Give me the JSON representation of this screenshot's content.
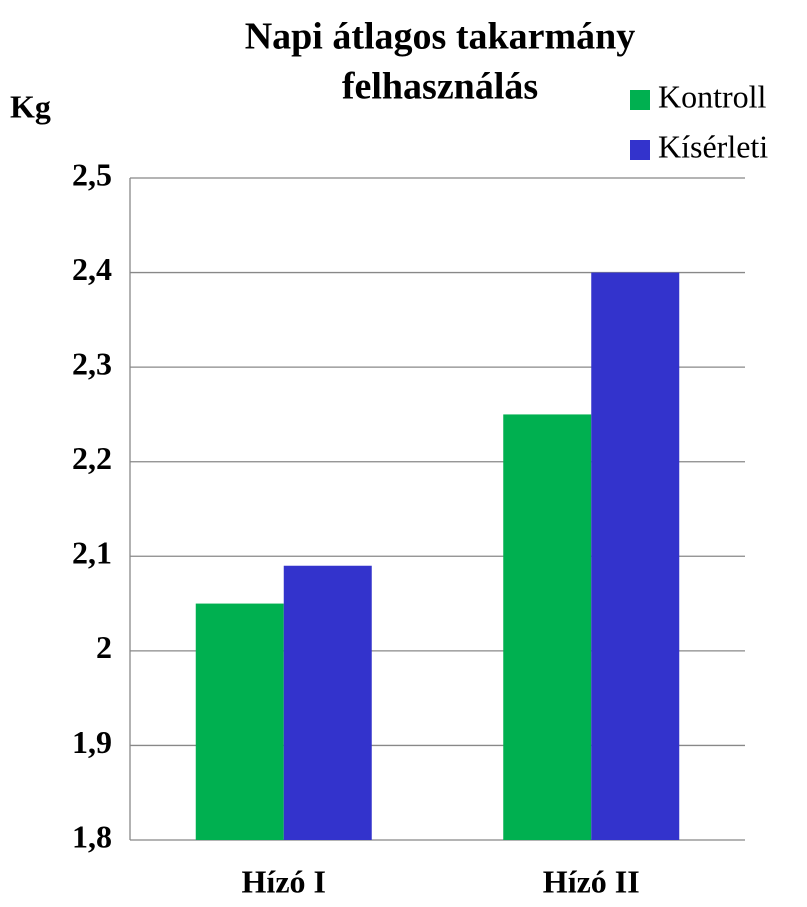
{
  "chart_data": {
    "type": "bar",
    "title": [
      "Napi  átlagos takarmány",
      "felhasználás"
    ],
    "y_label": "Kg",
    "categories": [
      "Hízó I",
      "Hízó II"
    ],
    "series": [
      {
        "name": "Kontroll",
        "color": "#00b050",
        "values": [
          2.05,
          2.25
        ]
      },
      {
        "name": "Kísérleti",
        "color": "#3333cc",
        "values": [
          2.09,
          2.4
        ]
      }
    ],
    "ylim": [
      1.8,
      2.5
    ],
    "yticks": [
      {
        "value": 1.8,
        "label": "1,8"
      },
      {
        "value": 1.9,
        "label": "1,9"
      },
      2,
      {
        "value": 2.1,
        "label": "2,1"
      },
      {
        "value": 2.2,
        "label": "2,2"
      },
      {
        "value": 2.3,
        "label": "2,3"
      },
      {
        "value": 2.4,
        "label": "2,4"
      },
      {
        "value": 2.5,
        "label": "2,5"
      }
    ],
    "grid": true,
    "legend": "top-right"
  }
}
